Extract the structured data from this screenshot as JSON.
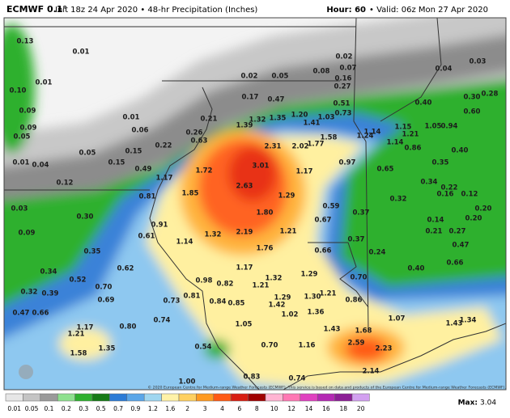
{
  "header": {
    "left_title": "ECMWF 0.1°",
    "left_sub": "Init 18z 24 Apr 2020 • 48-hr Precipitation (Inches)",
    "right_hour": "Hour: 60",
    "right_valid": "• Valid: 06z Mon 27 Apr 2020"
  },
  "map": {
    "values": [
      "0.13",
      "0.01",
      "0.01",
      "0.10",
      "0.09",
      "0.09",
      "0.05",
      "0.01",
      "0.06",
      "0.05",
      "0.15",
      "0.15",
      "0.01",
      "0.04",
      "0.12",
      "0.02",
      "0.05",
      "0.08",
      "0.02",
      "0.07",
      "0.16",
      "0.27",
      "0.04",
      "0.03",
      "0.17",
      "0.47",
      "0.28",
      "0.30",
      "0.40",
      "0.51",
      "0.60",
      "0.21",
      "1.39",
      "1.32",
      "1.35",
      "1.20",
      "1.03",
      "1.41",
      "0.73",
      "1.14",
      "1.15",
      "1.05",
      "0.94",
      "0.26",
      "0.63",
      "0.22",
      "1.58",
      "1.21",
      "1.14",
      "2.31",
      "2.02",
      "1.77",
      "1.24",
      "0.86",
      "0.40",
      "0.49",
      "1.72",
      "3.01",
      "1.17",
      "0.97",
      "0.65",
      "0.35",
      "1.17",
      "2.63",
      "0.34",
      "0.22",
      "0.16",
      "0.12",
      "1.85",
      "1.29",
      "0.81",
      "0.32",
      "0.03",
      "0.59",
      "1.80",
      "0.37",
      "0.30",
      "0.91",
      "0.67",
      "0.14",
      "0.20",
      "0.20",
      "0.09",
      "2.19",
      "1.32",
      "1.21",
      "0.21",
      "0.27",
      "0.61",
      "1.14",
      "0.37",
      "0.47",
      "1.76",
      "0.66",
      "0.24",
      "0.35",
      "0.62",
      "1.17",
      "0.66",
      "0.34",
      "1.29",
      "0.40",
      "1.32",
      "0.52",
      "0.98",
      "0.82",
      "1.21",
      "0.70",
      "0.32",
      "0.39",
      "0.70",
      "1.29",
      "1.30",
      "1.21",
      "0.81",
      "0.69",
      "0.73",
      "0.84",
      "0.85",
      "1.42",
      "0.86",
      "0.47",
      "0.66",
      "0.74",
      "1.02",
      "1.36",
      "1.07",
      "1.34",
      "1.43",
      "1.17",
      "0.80",
      "1.05",
      "1.43",
      "1.68",
      "1.21",
      "0.54",
      "0.70",
      "1.16",
      "2.59",
      "2.23",
      "1.58",
      "1.35",
      "2.14",
      "1.00",
      "0.83",
      "0.74"
    ],
    "copyright": "© 2020 European Centre for Medium-range Weather Forecasts (ECMWF). This service is based on data and products of the European Centre for Medium-range Weather Forecasts (ECMWF)."
  },
  "colorbar": {
    "labels": [
      "0.01",
      "0.05",
      "0.1",
      "0.2",
      "0.3",
      "0.5",
      "0.7",
      "0.9",
      "1.2",
      "1.6",
      "2",
      "3",
      "4",
      "6",
      "8",
      "10",
      "12",
      "14",
      "16",
      "18",
      "20"
    ],
    "colors": [
      "#e6e6e6",
      "#c4c4c4",
      "#9a9a9a",
      "#8ee08e",
      "#2fb02f",
      "#167a16",
      "#2b7bd6",
      "#5aa6e8",
      "#9fd6f0",
      "#fff2a8",
      "#ffd060",
      "#ff9a20",
      "#ff5a14",
      "#d81e12",
      "#a00000",
      "#ffb4d2",
      "#ff78b4",
      "#e040c0",
      "#b428b4",
      "#8c1e96",
      "#d2a0f0"
    ],
    "max_label": "Max:",
    "max_value": "3.04"
  }
}
